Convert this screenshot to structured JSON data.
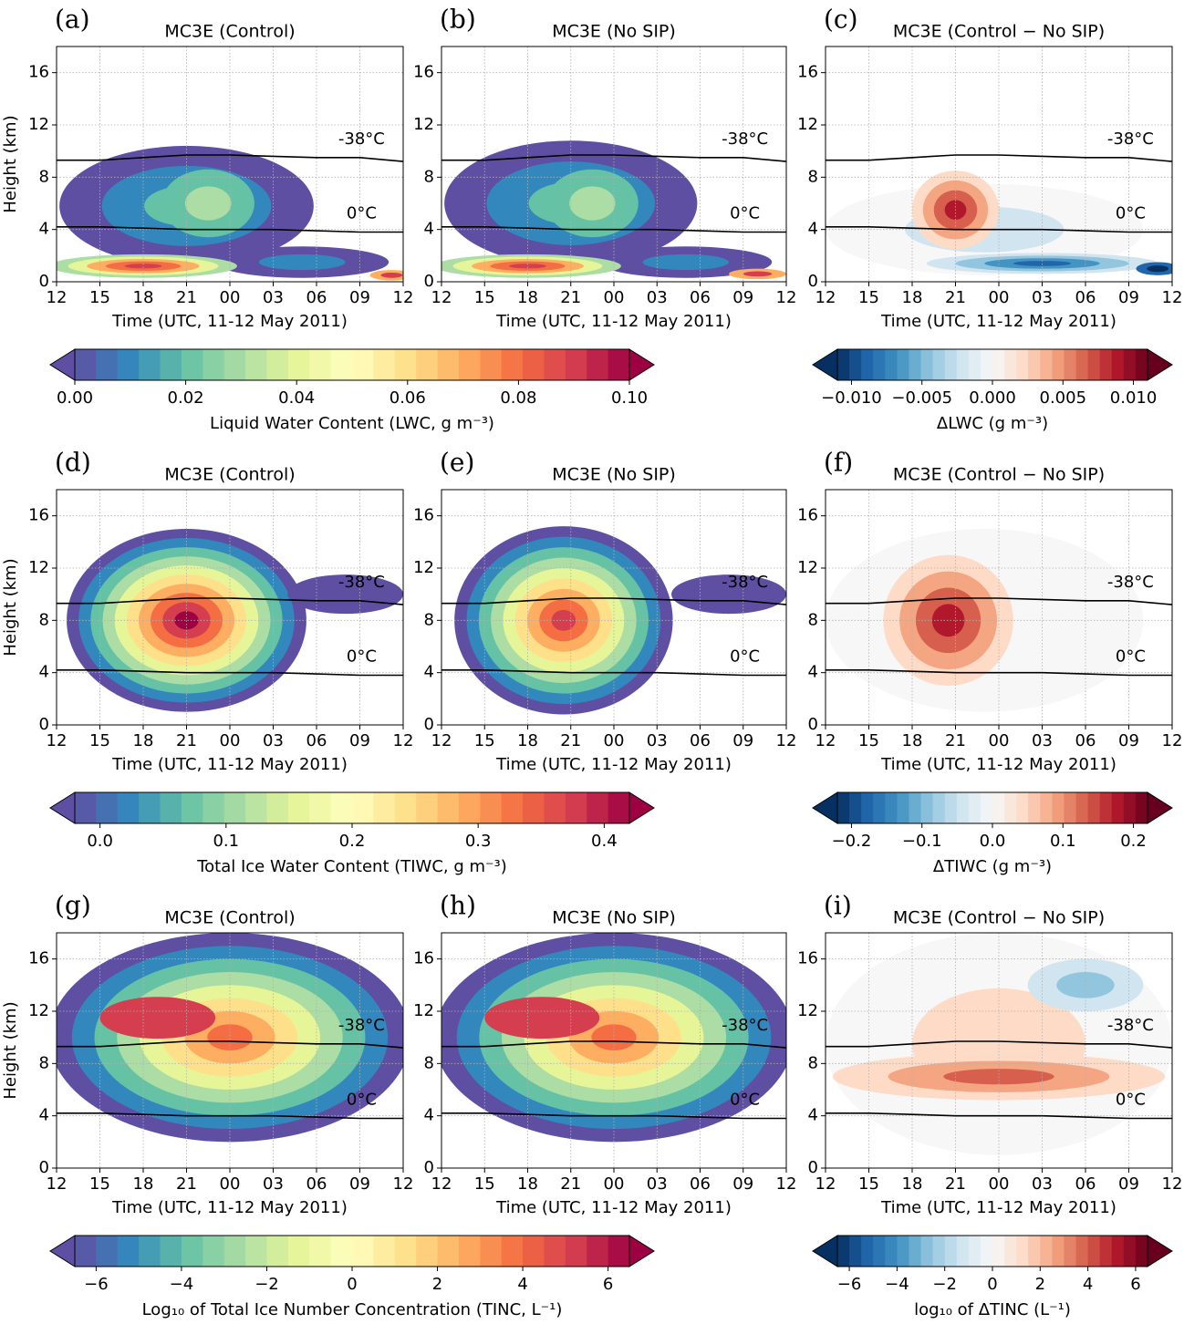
{
  "chart_data": [
    {
      "type": "contour",
      "panel_label": "(a)",
      "title": "MC3E (Control)",
      "xlabel": "Time (UTC, 11-12 May 2011)",
      "ylabel": "Height (km)",
      "xlim": [
        0,
        24
      ],
      "xticks": [
        {
          "value": 0,
          "label": "12"
        },
        {
          "value": 3,
          "label": "15"
        },
        {
          "value": 6,
          "label": "18"
        },
        {
          "value": 9,
          "label": "21"
        },
        {
          "value": 12,
          "label": "00"
        },
        {
          "value": 15,
          "label": "03"
        },
        {
          "value": 18,
          "label": "06"
        },
        {
          "value": 21,
          "label": "09"
        },
        {
          "value": 24,
          "label": "12"
        }
      ],
      "ylim": [
        0,
        18
      ],
      "yticks": [
        0,
        4,
        8,
        12,
        16
      ],
      "grid": true,
      "series": [
        {
          "name": "-38°C",
          "color": "#000000",
          "x": [
            0,
            3,
            6,
            9,
            12,
            15,
            18,
            21,
            24
          ],
          "y": [
            9.3,
            9.3,
            9.5,
            9.7,
            9.7,
            9.6,
            9.5,
            9.5,
            9.2
          ]
        },
        {
          "name": "0°C",
          "color": "#000000",
          "x": [
            0,
            3,
            6,
            9,
            12,
            15,
            18,
            21,
            24
          ],
          "y": [
            4.2,
            4.2,
            4.1,
            4.0,
            4.0,
            4.0,
            3.9,
            3.8,
            3.8
          ]
        }
      ]
    },
    {
      "type": "contour",
      "panel_label": "(b)",
      "title": "MC3E (No SIP)",
      "xlabel": "Time (UTC, 11-12 May 2011)",
      "xlim": [
        0,
        24
      ],
      "xticks": [
        {
          "value": 0,
          "label": "12"
        },
        {
          "value": 3,
          "label": "15"
        },
        {
          "value": 6,
          "label": "18"
        },
        {
          "value": 9,
          "label": "21"
        },
        {
          "value": 12,
          "label": "00"
        },
        {
          "value": 15,
          "label": "03"
        },
        {
          "value": 18,
          "label": "06"
        },
        {
          "value": 21,
          "label": "09"
        },
        {
          "value": 24,
          "label": "12"
        }
      ],
      "ylim": [
        0,
        18
      ],
      "yticks": [
        0,
        4,
        8,
        12,
        16
      ],
      "grid": true,
      "series": [
        {
          "name": "-38°C",
          "color": "#000000",
          "x": [
            0,
            3,
            6,
            9,
            12,
            15,
            18,
            21,
            24
          ],
          "y": [
            9.3,
            9.3,
            9.5,
            9.7,
            9.7,
            9.6,
            9.5,
            9.5,
            9.2
          ]
        },
        {
          "name": "0°C",
          "color": "#000000",
          "x": [
            0,
            3,
            6,
            9,
            12,
            15,
            18,
            21,
            24
          ],
          "y": [
            4.2,
            4.2,
            4.1,
            4.0,
            4.0,
            4.0,
            3.9,
            3.8,
            3.8
          ]
        }
      ]
    },
    {
      "type": "contour",
      "panel_label": "(c)",
      "title": "MC3E (Control − No SIP)",
      "xlabel": "Time (UTC, 11-12 May 2011)",
      "xlim": [
        0,
        24
      ],
      "xticks": [
        {
          "value": 0,
          "label": "12"
        },
        {
          "value": 3,
          "label": "15"
        },
        {
          "value": 6,
          "label": "18"
        },
        {
          "value": 9,
          "label": "21"
        },
        {
          "value": 12,
          "label": "00"
        },
        {
          "value": 15,
          "label": "03"
        },
        {
          "value": 18,
          "label": "06"
        },
        {
          "value": 21,
          "label": "09"
        },
        {
          "value": 24,
          "label": "12"
        }
      ],
      "ylim": [
        0,
        18
      ],
      "yticks": [
        0,
        4,
        8,
        12,
        16
      ],
      "grid": true,
      "series": [
        {
          "name": "-38°C",
          "color": "#000000",
          "x": [
            0,
            3,
            6,
            9,
            12,
            15,
            18,
            21,
            24
          ],
          "y": [
            9.3,
            9.3,
            9.5,
            9.7,
            9.7,
            9.6,
            9.5,
            9.5,
            9.2
          ]
        },
        {
          "name": "0°C",
          "color": "#000000",
          "x": [
            0,
            3,
            6,
            9,
            12,
            15,
            18,
            21,
            24
          ],
          "y": [
            4.2,
            4.2,
            4.1,
            4.0,
            4.0,
            4.0,
            3.9,
            3.8,
            3.8
          ]
        }
      ]
    },
    {
      "type": "contour",
      "panel_label": "(d)",
      "title": "MC3E (Control)",
      "xlabel": "Time (UTC, 11-12 May 2011)",
      "ylabel": "Height (km)",
      "xlim": [
        0,
        24
      ],
      "xticks": [
        {
          "value": 0,
          "label": "12"
        },
        {
          "value": 3,
          "label": "15"
        },
        {
          "value": 6,
          "label": "18"
        },
        {
          "value": 9,
          "label": "21"
        },
        {
          "value": 12,
          "label": "00"
        },
        {
          "value": 15,
          "label": "03"
        },
        {
          "value": 18,
          "label": "06"
        },
        {
          "value": 21,
          "label": "09"
        },
        {
          "value": 24,
          "label": "12"
        }
      ],
      "ylim": [
        0,
        18
      ],
      "yticks": [
        0,
        4,
        8,
        12,
        16
      ],
      "grid": true,
      "series": [
        {
          "name": "-38°C",
          "color": "#000000",
          "x": [
            0,
            3,
            6,
            9,
            12,
            15,
            18,
            21,
            24
          ],
          "y": [
            9.3,
            9.3,
            9.5,
            9.7,
            9.7,
            9.6,
            9.5,
            9.5,
            9.2
          ]
        },
        {
          "name": "0°C",
          "color": "#000000",
          "x": [
            0,
            3,
            6,
            9,
            12,
            15,
            18,
            21,
            24
          ],
          "y": [
            4.2,
            4.2,
            4.1,
            4.0,
            4.0,
            4.0,
            3.9,
            3.8,
            3.8
          ]
        }
      ]
    },
    {
      "type": "contour",
      "panel_label": "(e)",
      "title": "MC3E (No SIP)",
      "xlabel": "Time (UTC, 11-12 May 2011)",
      "xlim": [
        0,
        24
      ],
      "xticks": [
        {
          "value": 0,
          "label": "12"
        },
        {
          "value": 3,
          "label": "15"
        },
        {
          "value": 6,
          "label": "18"
        },
        {
          "value": 9,
          "label": "21"
        },
        {
          "value": 12,
          "label": "00"
        },
        {
          "value": 15,
          "label": "03"
        },
        {
          "value": 18,
          "label": "06"
        },
        {
          "value": 21,
          "label": "09"
        },
        {
          "value": 24,
          "label": "12"
        }
      ],
      "ylim": [
        0,
        18
      ],
      "yticks": [
        0,
        4,
        8,
        12,
        16
      ],
      "grid": true,
      "series": [
        {
          "name": "-38°C",
          "color": "#000000",
          "x": [
            0,
            3,
            6,
            9,
            12,
            15,
            18,
            21,
            24
          ],
          "y": [
            9.3,
            9.3,
            9.5,
            9.7,
            9.7,
            9.6,
            9.5,
            9.5,
            9.2
          ]
        },
        {
          "name": "0°C",
          "color": "#000000",
          "x": [
            0,
            3,
            6,
            9,
            12,
            15,
            18,
            21,
            24
          ],
          "y": [
            4.2,
            4.2,
            4.1,
            4.0,
            4.0,
            4.0,
            3.9,
            3.8,
            3.8
          ]
        }
      ]
    },
    {
      "type": "contour",
      "panel_label": "(f)",
      "title": "MC3E (Control − No SIP)",
      "xlabel": "Time (UTC, 11-12 May 2011)",
      "xlim": [
        0,
        24
      ],
      "xticks": [
        {
          "value": 0,
          "label": "12"
        },
        {
          "value": 3,
          "label": "15"
        },
        {
          "value": 6,
          "label": "18"
        },
        {
          "value": 9,
          "label": "21"
        },
        {
          "value": 12,
          "label": "00"
        },
        {
          "value": 15,
          "label": "03"
        },
        {
          "value": 18,
          "label": "06"
        },
        {
          "value": 21,
          "label": "09"
        },
        {
          "value": 24,
          "label": "12"
        }
      ],
      "ylim": [
        0,
        18
      ],
      "yticks": [
        0,
        4,
        8,
        12,
        16
      ],
      "grid": true,
      "series": [
        {
          "name": "-38°C",
          "color": "#000000",
          "x": [
            0,
            3,
            6,
            9,
            12,
            15,
            18,
            21,
            24
          ],
          "y": [
            9.3,
            9.3,
            9.5,
            9.7,
            9.7,
            9.6,
            9.5,
            9.5,
            9.2
          ]
        },
        {
          "name": "0°C",
          "color": "#000000",
          "x": [
            0,
            3,
            6,
            9,
            12,
            15,
            18,
            21,
            24
          ],
          "y": [
            4.2,
            4.2,
            4.1,
            4.0,
            4.0,
            4.0,
            3.9,
            3.8,
            3.8
          ]
        }
      ]
    },
    {
      "type": "contour",
      "panel_label": "(g)",
      "title": "MC3E (Control)",
      "xlabel": "Time (UTC, 11-12 May 2011)",
      "ylabel": "Height (km)",
      "xlim": [
        0,
        24
      ],
      "xticks": [
        {
          "value": 0,
          "label": "12"
        },
        {
          "value": 3,
          "label": "15"
        },
        {
          "value": 6,
          "label": "18"
        },
        {
          "value": 9,
          "label": "21"
        },
        {
          "value": 12,
          "label": "00"
        },
        {
          "value": 15,
          "label": "03"
        },
        {
          "value": 18,
          "label": "06"
        },
        {
          "value": 21,
          "label": "09"
        },
        {
          "value": 24,
          "label": "12"
        }
      ],
      "ylim": [
        0,
        18
      ],
      "yticks": [
        0,
        4,
        8,
        12,
        16
      ],
      "grid": true,
      "series": [
        {
          "name": "-38°C",
          "color": "#000000",
          "x": [
            0,
            3,
            6,
            9,
            12,
            15,
            18,
            21,
            24
          ],
          "y": [
            9.3,
            9.3,
            9.5,
            9.7,
            9.7,
            9.6,
            9.5,
            9.5,
            9.2
          ]
        },
        {
          "name": "0°C",
          "color": "#000000",
          "x": [
            0,
            3,
            6,
            9,
            12,
            15,
            18,
            21,
            24
          ],
          "y": [
            4.2,
            4.2,
            4.1,
            4.0,
            4.0,
            4.0,
            3.9,
            3.8,
            3.8
          ]
        }
      ]
    },
    {
      "type": "contour",
      "panel_label": "(h)",
      "title": "MC3E (No SIP)",
      "xlabel": "Time (UTC, 11-12 May 2011)",
      "xlim": [
        0,
        24
      ],
      "xticks": [
        {
          "value": 0,
          "label": "12"
        },
        {
          "value": 3,
          "label": "15"
        },
        {
          "value": 6,
          "label": "18"
        },
        {
          "value": 9,
          "label": "21"
        },
        {
          "value": 12,
          "label": "00"
        },
        {
          "value": 15,
          "label": "03"
        },
        {
          "value": 18,
          "label": "06"
        },
        {
          "value": 21,
          "label": "09"
        },
        {
          "value": 24,
          "label": "12"
        }
      ],
      "ylim": [
        0,
        18
      ],
      "yticks": [
        0,
        4,
        8,
        12,
        16
      ],
      "grid": true,
      "series": [
        {
          "name": "-38°C",
          "color": "#000000",
          "x": [
            0,
            3,
            6,
            9,
            12,
            15,
            18,
            21,
            24
          ],
          "y": [
            9.3,
            9.3,
            9.5,
            9.7,
            9.7,
            9.6,
            9.5,
            9.5,
            9.2
          ]
        },
        {
          "name": "0°C",
          "color": "#000000",
          "x": [
            0,
            3,
            6,
            9,
            12,
            15,
            18,
            21,
            24
          ],
          "y": [
            4.2,
            4.2,
            4.1,
            4.0,
            4.0,
            4.0,
            3.9,
            3.8,
            3.8
          ]
        }
      ]
    },
    {
      "type": "contour",
      "panel_label": "(i)",
      "title": "MC3E (Control − No SIP)",
      "xlabel": "Time (UTC, 11-12 May 2011)",
      "xlim": [
        0,
        24
      ],
      "xticks": [
        {
          "value": 0,
          "label": "12"
        },
        {
          "value": 3,
          "label": "15"
        },
        {
          "value": 6,
          "label": "18"
        },
        {
          "value": 9,
          "label": "21"
        },
        {
          "value": 12,
          "label": "00"
        },
        {
          "value": 15,
          "label": "03"
        },
        {
          "value": 18,
          "label": "06"
        },
        {
          "value": 21,
          "label": "09"
        },
        {
          "value": 24,
          "label": "12"
        }
      ],
      "ylim": [
        0,
        18
      ],
      "yticks": [
        0,
        4,
        8,
        12,
        16
      ],
      "grid": true,
      "series": [
        {
          "name": "-38°C",
          "color": "#000000",
          "x": [
            0,
            3,
            6,
            9,
            12,
            15,
            18,
            21,
            24
          ],
          "y": [
            9.3,
            9.3,
            9.5,
            9.7,
            9.7,
            9.6,
            9.5,
            9.5,
            9.2
          ]
        },
        {
          "name": "0°C",
          "color": "#000000",
          "x": [
            0,
            3,
            6,
            9,
            12,
            15,
            18,
            21,
            24
          ],
          "y": [
            4.2,
            4.2,
            4.1,
            4.0,
            4.0,
            4.0,
            3.9,
            3.8,
            3.8
          ]
        }
      ]
    },
    {
      "type": "colorbar",
      "label": "Liquid Water Content (LWC, g m⁻³)",
      "colormap": "spectral",
      "xlim": [
        0,
        0.1
      ],
      "xticks": [
        {
          "value": 0,
          "label": "0.00"
        },
        0.02,
        0.04,
        0.06,
        0.08,
        {
          "value": 0.1,
          "label": "0.10"
        }
      ]
    },
    {
      "type": "colorbar",
      "label": "ΔLWC (g m⁻³)",
      "colormap": "diverging",
      "xlim": [
        -0.011,
        0.011
      ],
      "xticks": [
        {
          "value": -0.01,
          "label": "−0.010"
        },
        {
          "value": -0.005,
          "label": "−0.005"
        },
        {
          "value": 0,
          "label": "0.000"
        },
        {
          "value": 0.005,
          "label": "0.005"
        },
        {
          "value": 0.01,
          "label": "0.010"
        }
      ]
    },
    {
      "type": "colorbar",
      "label": "Total Ice Water Content (TIWC, g m⁻³)",
      "colormap": "spectral",
      "xlim": [
        -0.02,
        0.42
      ],
      "xticks": [
        {
          "value": 0,
          "label": "0.0"
        },
        0.1,
        0.2,
        0.3,
        0.4
      ]
    },
    {
      "type": "colorbar",
      "label": "ΔTIWC (g m⁻³)",
      "colormap": "diverging",
      "xlim": [
        -0.22,
        0.22
      ],
      "xticks": [
        {
          "value": -0.2,
          "label": "−0.2"
        },
        {
          "value": -0.1,
          "label": "−0.1"
        },
        {
          "value": 0,
          "label": "0.0"
        },
        0.1,
        0.2
      ]
    },
    {
      "type": "colorbar",
      "label": "Log₁₀ of Total Ice Number Concentration (TINC, L⁻¹)",
      "colormap": "spectral",
      "xlim": [
        -6.5,
        6.5
      ],
      "xticks": [
        {
          "value": -6,
          "label": "−6"
        },
        {
          "value": -4,
          "label": "−4"
        },
        {
          "value": -2,
          "label": "−2"
        },
        0,
        2,
        4,
        6
      ]
    },
    {
      "type": "colorbar",
      "label": "log₁₀ of ΔTINC (L⁻¹)",
      "colormap": "diverging",
      "xlim": [
        -6.5,
        6.5
      ],
      "xticks": [
        {
          "value": -6,
          "label": "−6"
        },
        {
          "value": -4,
          "label": "−4"
        },
        {
          "value": -2,
          "label": "−2"
        },
        0,
        2,
        4,
        6
      ]
    }
  ]
}
